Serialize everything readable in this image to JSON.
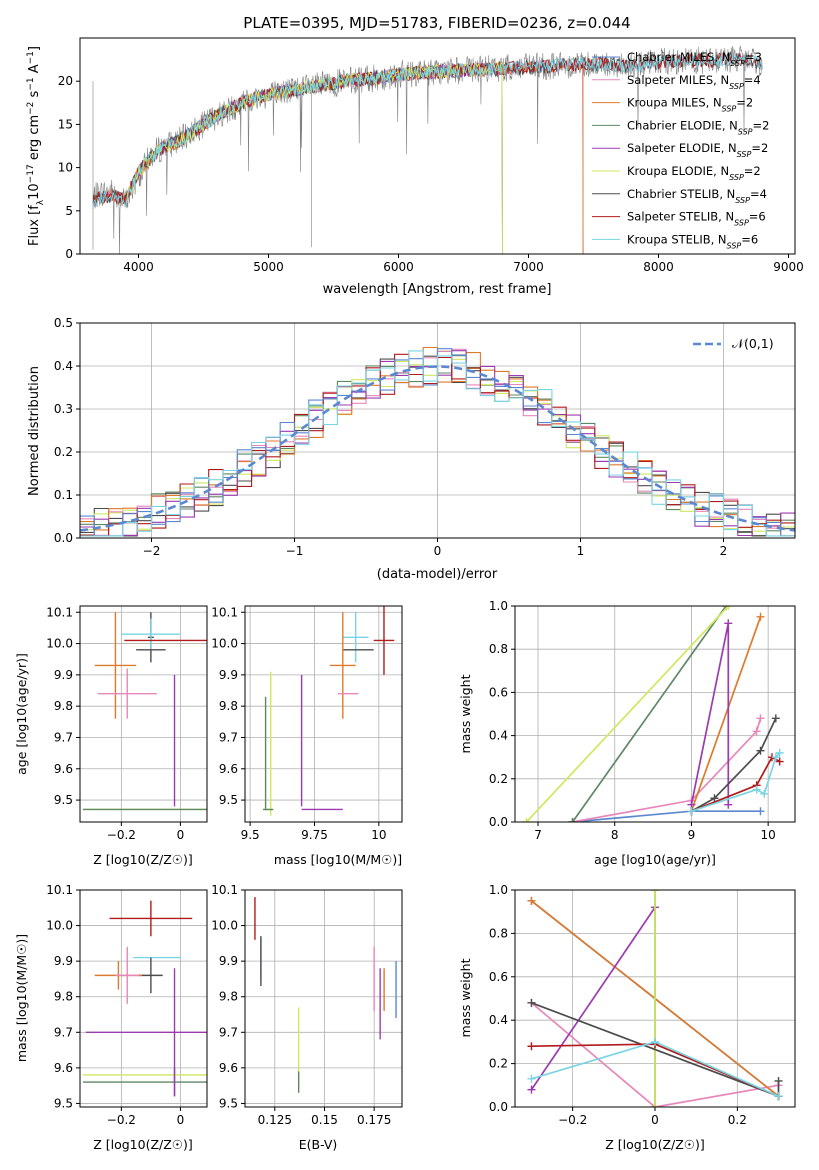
{
  "title": "PLATE=0395, MJD=51783, FIBERID=0236, z=0.044",
  "legend_colors": [
    "#5b88d0",
    "#e787bb",
    "#de7a2b",
    "#5e8764",
    "#9c3bb0",
    "#cfe85e",
    "#4c4c4c",
    "#b11b1b",
    "#79d4e3"
  ],
  "models": [
    {
      "name": "Chabrier MILES",
      "nssp": "3"
    },
    {
      "name": "Salpeter MILES",
      "nssp": "4"
    },
    {
      "name": "Kroupa MILES",
      "nssp": "2"
    },
    {
      "name": "Chabrier ELODIE",
      "nssp": "2"
    },
    {
      "name": "Salpeter ELODIE",
      "nssp": "2"
    },
    {
      "name": "Kroupa ELODIE",
      "nssp": "2"
    },
    {
      "name": "Chabrier STELIB",
      "nssp": "4"
    },
    {
      "name": "Salpeter STELIB",
      "nssp": "6"
    },
    {
      "name": "Kroupa STELIB",
      "nssp": "6"
    }
  ],
  "chart_data": [
    {
      "type": "line",
      "id": "spectrum",
      "xlabel": "wavelength [Angstrom, rest frame]",
      "ylabel": "Flux [f_λ 10^-17 erg cm^-2 s^-1 A^-1]",
      "xlim": [
        3550,
        9050
      ],
      "ylim": [
        0,
        25
      ],
      "xticks": [
        4000,
        5000,
        6000,
        7000,
        8000,
        9000
      ],
      "yticks": [
        0,
        5,
        10,
        15,
        20
      ],
      "data_continuum": {
        "x": [
          3650,
          3700,
          3800,
          3900,
          4000,
          4100,
          4200,
          4300,
          4400,
          4500,
          4600,
          4800,
          5000,
          5200,
          5400,
          5600,
          5800,
          6000,
          6200,
          6400,
          6600,
          6800,
          7000,
          7200,
          7400,
          7600,
          7800,
          8000,
          8200,
          8400,
          8600,
          8800
        ],
        "y": [
          6.5,
          7.0,
          7.2,
          6.0,
          9.0,
          11.5,
          12.5,
          13.0,
          14.0,
          15.0,
          16.0,
          17.5,
          18.5,
          19.0,
          19.5,
          20.0,
          20.3,
          20.8,
          21.0,
          21.2,
          21.3,
          21.5,
          21.6,
          21.8,
          22.0,
          22.0,
          21.8,
          22.2,
          22.4,
          22.4,
          22.6,
          22.0
        ]
      },
      "model_continuum": {
        "x": [
          3650,
          3700,
          3800,
          3900,
          4000,
          4100,
          4200,
          4300,
          4400,
          4500,
          4600,
          4800,
          5000,
          5200,
          5400,
          5600,
          5800,
          6000,
          6200,
          6400,
          6600,
          6800,
          7000,
          7200,
          7400,
          7600,
          7800,
          8000,
          8200,
          8400,
          8600,
          8800
        ],
        "y": [
          6.0,
          6.5,
          6.8,
          6.2,
          9.5,
          11.2,
          12.5,
          13.0,
          14.0,
          15.0,
          16.0,
          17.5,
          18.5,
          19.0,
          19.5,
          20.0,
          20.3,
          20.8,
          21.0,
          21.2,
          21.3,
          21.5,
          21.6,
          21.8,
          22.0,
          22.0,
          21.8,
          22.2,
          22.4,
          22.4,
          22.6,
          22.0
        ]
      },
      "model_ranges": [
        [
          3650,
          7420
        ],
        [
          3650,
          7420
        ],
        [
          3650,
          7420
        ],
        [
          3900,
          6800
        ],
        [
          3900,
          6800
        ],
        [
          3900,
          6800
        ],
        [
          3650,
          8800
        ],
        [
          3650,
          8800
        ],
        [
          3650,
          8800
        ]
      ]
    },
    {
      "type": "bar",
      "id": "residuals",
      "xlabel": "(data-model)/error",
      "ylabel": "Normed distribution",
      "xlim": [
        -2.5,
        2.5
      ],
      "ylim": [
        0,
        0.5
      ],
      "xticks": [
        -2,
        -1,
        0,
        1,
        2
      ],
      "yticks": [
        0.0,
        0.1,
        0.2,
        0.3,
        0.4,
        0.5
      ],
      "bin_width": 0.1,
      "gaussian_label": "𝒩(0,1)",
      "gaussian": {
        "mu": 0,
        "sigma": 1
      }
    },
    {
      "type": "scatter",
      "id": "z-age",
      "xlabel": "Z [log10(Z/Z☉)]",
      "ylabel": "age  [log10(age/yr)]",
      "xlim": [
        -0.34,
        0.09
      ],
      "ylim": [
        9.43,
        10.12
      ],
      "xticks": [
        -0.2,
        0.0
      ],
      "yticks": [
        9.5,
        9.6,
        9.7,
        9.8,
        9.9,
        10.0,
        10.1
      ],
      "points": [
        {
          "c": 6,
          "x": -0.1,
          "y": 10.02,
          "xerr": 0.01,
          "yerr": 0.08
        },
        {
          "c": 8,
          "x": -0.1,
          "y": 10.03,
          "xerr": 0.1,
          "yerr": 0.05
        },
        {
          "c": 7,
          "x": -0.05,
          "y": 10.01,
          "xerr": 0.14,
          "yerr": 0.0
        },
        {
          "c": 6,
          "x": -0.1,
          "y": 9.98,
          "xerr": 0.05,
          "yerr": 0.0
        },
        {
          "c": 2,
          "x": -0.22,
          "y": 9.93,
          "xerr": 0.07,
          "yerr": 0.17
        },
        {
          "c": 1,
          "x": -0.18,
          "y": 9.84,
          "xerr": 0.1,
          "yerr": 0.08
        },
        {
          "c": 4,
          "x": -0.02,
          "y": 9.69,
          "xerr": 0.0,
          "yerr": 0.21
        },
        {
          "c": 5,
          "x": -0.02,
          "y": 9.47,
          "xerr": 0.31,
          "yerr": 0.0
        },
        {
          "c": 3,
          "x": -0.02,
          "y": 9.47,
          "xerr": 0.31,
          "yerr": 0.0
        },
        {
          "c": 4,
          "x": -0.02,
          "y": 9.47,
          "xerr": 0.0,
          "yerr": 0.0
        }
      ]
    },
    {
      "type": "scatter",
      "id": "mass-age",
      "xlabel": "mass [log10(M/M☉)]",
      "ylabel": "",
      "xlim": [
        9.48,
        10.09
      ],
      "ylim": [
        9.43,
        10.12
      ],
      "xticks": [
        9.5,
        9.75,
        10.0
      ],
      "yticks": [
        9.5,
        9.6,
        9.7,
        9.8,
        9.9,
        10.0,
        10.1
      ],
      "points": [
        {
          "c": 7,
          "x": 10.02,
          "y": 10.01,
          "xerr": 0.04,
          "yerr": 0.11
        },
        {
          "c": 8,
          "x": 9.91,
          "y": 10.02,
          "xerr": 0.05,
          "yerr": 0.08
        },
        {
          "c": 6,
          "x": 9.92,
          "y": 9.98,
          "xerr": 0.06,
          "yerr": 0.0
        },
        {
          "c": 2,
          "x": 9.86,
          "y": 9.93,
          "xerr": 0.05,
          "yerr": 0.17
        },
        {
          "c": 1,
          "x": 9.88,
          "y": 9.84,
          "xerr": 0.04,
          "yerr": 0.0
        },
        {
          "c": 5,
          "x": 9.58,
          "y": 9.68,
          "xerr": 0.0,
          "yerr": 0.23
        },
        {
          "c": 3,
          "x": 9.56,
          "y": 9.65,
          "xerr": 0.0,
          "yerr": 0.18
        },
        {
          "c": 4,
          "x": 9.7,
          "y": 9.69,
          "xerr": 0.0,
          "yerr": 0.21
        },
        {
          "c": 4,
          "x": 9.78,
          "y": 9.47,
          "xerr": 0.08,
          "yerr": 0.0
        },
        {
          "c": 5,
          "x": 9.57,
          "y": 9.47,
          "xerr": 0.02,
          "yerr": 0.0
        },
        {
          "c": 3,
          "x": 9.57,
          "y": 9.47,
          "xerr": 0.02,
          "yerr": 0.0
        }
      ]
    },
    {
      "type": "line",
      "id": "age-weight",
      "xlabel": "age  [log10(age/yr)]",
      "ylabel": "mass weight",
      "xlim": [
        6.7,
        10.35
      ],
      "ylim": [
        0,
        1
      ],
      "xticks": [
        7,
        8,
        9,
        10
      ],
      "yticks": [
        0.0,
        0.2,
        0.4,
        0.6,
        0.8,
        1.0
      ],
      "series": [
        {
          "c": 0,
          "x": [
            7.45,
            9.0,
            9.9
          ],
          "y": [
            0.0,
            0.05,
            0.05
          ]
        },
        {
          "c": 1,
          "x": [
            7.45,
            9.0,
            9.85,
            9.9
          ],
          "y": [
            0.0,
            0.1,
            0.42,
            0.48
          ]
        },
        {
          "c": 2,
          "x": [
            9.0,
            9.9
          ],
          "y": [
            0.05,
            0.95
          ]
        },
        {
          "c": 3,
          "x": [
            7.45,
            9.45
          ],
          "y": [
            0.0,
            1.0
          ]
        },
        {
          "c": 4,
          "x": [
            9.0,
            9.48,
            9.48
          ],
          "y": [
            0.08,
            0.92,
            0.08
          ]
        },
        {
          "c": 5,
          "x": [
            6.85,
            9.48
          ],
          "y": [
            0.0,
            1.0
          ]
        },
        {
          "c": 6,
          "x": [
            9.0,
            9.3,
            9.9,
            10.1
          ],
          "y": [
            0.05,
            0.11,
            0.33,
            0.48
          ]
        },
        {
          "c": 7,
          "x": [
            9.0,
            9.85,
            10.05,
            10.15
          ],
          "y": [
            0.05,
            0.17,
            0.3,
            0.28
          ]
        },
        {
          "c": 8,
          "x": [
            9.0,
            9.85,
            9.95,
            10.1,
            10.15
          ],
          "y": [
            0.05,
            0.15,
            0.13,
            0.3,
            0.32
          ]
        }
      ]
    },
    {
      "type": "scatter",
      "id": "z-mass",
      "xlabel": "Z [log10(Z/Z☉)]",
      "ylabel": "mass [log10(M/M☉)]",
      "xlim": [
        -0.34,
        0.09
      ],
      "ylim": [
        9.49,
        10.1
      ],
      "xticks": [
        -0.2,
        0.0
      ],
      "yticks": [
        9.5,
        9.6,
        9.7,
        9.8,
        9.9,
        10.0,
        10.1
      ],
      "points": [
        {
          "c": 7,
          "x": -0.1,
          "y": 10.02,
          "xerr": 0.14,
          "yerr": 0.05
        },
        {
          "c": 8,
          "x": -0.08,
          "y": 9.91,
          "xerr": 0.08,
          "yerr": 0.0
        },
        {
          "c": 6,
          "x": -0.1,
          "y": 9.86,
          "xerr": 0.04,
          "yerr": 0.05
        },
        {
          "c": 2,
          "x": -0.21,
          "y": 9.86,
          "xerr": 0.08,
          "yerr": 0.04
        },
        {
          "c": 1,
          "x": -0.18,
          "y": 9.86,
          "xerr": 0.04,
          "yerr": 0.08
        },
        {
          "c": 4,
          "x": -0.02,
          "y": 9.7,
          "xerr": 0.3,
          "yerr": 0.18
        },
        {
          "c": 5,
          "x": -0.02,
          "y": 9.58,
          "xerr": 0.31,
          "yerr": 0.0
        },
        {
          "c": 3,
          "x": -0.02,
          "y": 9.56,
          "xerr": 0.31,
          "yerr": 0.0
        },
        {
          "c": 4,
          "x": -0.02,
          "y": 9.56,
          "xerr": 0.0,
          "yerr": 0.04
        }
      ]
    },
    {
      "type": "scatter",
      "id": "ebv-mass",
      "xlabel": "E(B-V)",
      "ylabel": "",
      "xlim": [
        0.11,
        0.189
      ],
      "ylim": [
        9.49,
        10.1
      ],
      "xticks": [
        0.125,
        0.15,
        0.175
      ],
      "yticks": [
        9.5,
        9.6,
        9.7,
        9.8,
        9.9,
        10.0,
        10.1
      ],
      "points": [
        {
          "c": 7,
          "x": 0.115,
          "y": 10.02,
          "xerr": 0.0,
          "yerr": 0.06
        },
        {
          "c": 8,
          "x": 0.118,
          "y": 9.91,
          "xerr": 0.0,
          "yerr": 0.06
        },
        {
          "c": 6,
          "x": 0.118,
          "y": 9.9,
          "xerr": 0.0,
          "yerr": 0.07
        },
        {
          "c": 5,
          "x": 0.137,
          "y": 9.66,
          "xerr": 0.0,
          "yerr": 0.11
        },
        {
          "c": 3,
          "x": 0.137,
          "y": 9.56,
          "xerr": 0.0,
          "yerr": 0.03
        },
        {
          "c": 1,
          "x": 0.175,
          "y": 9.85,
          "xerr": 0.0,
          "yerr": 0.09
        },
        {
          "c": 4,
          "x": 0.178,
          "y": 9.78,
          "xerr": 0.0,
          "yerr": 0.1
        },
        {
          "c": 2,
          "x": 0.18,
          "y": 9.82,
          "xerr": 0.0,
          "yerr": 0.06
        },
        {
          "c": 0,
          "x": 0.186,
          "y": 9.82,
          "xerr": 0.0,
          "yerr": 0.08
        }
      ]
    },
    {
      "type": "line",
      "id": "z-weight",
      "xlabel": "Z [log10(Z/Z☉)]",
      "ylabel": "mass weight",
      "xlim": [
        -0.34,
        0.34
      ],
      "ylim": [
        0,
        1
      ],
      "xticks": [
        -0.2,
        0.0,
        0.2
      ],
      "yticks": [
        0.0,
        0.2,
        0.4,
        0.6,
        0.8,
        1.0
      ],
      "series": [
        {
          "c": 0,
          "x": [
            -0.3,
            0.3
          ],
          "y": [
            0.95,
            0.05
          ]
        },
        {
          "c": 1,
          "x": [
            -0.3,
            0.0,
            0.3
          ],
          "y": [
            0.48,
            0.0,
            0.1
          ]
        },
        {
          "c": 2,
          "x": [
            -0.3,
            0.3
          ],
          "y": [
            0.95,
            0.05
          ]
        },
        {
          "c": 3,
          "x": [
            0.0,
            0.0
          ],
          "y": [
            0.0,
            1.0
          ]
        },
        {
          "c": 4,
          "x": [
            -0.3,
            0.0
          ],
          "y": [
            0.08,
            0.92
          ]
        },
        {
          "c": 5,
          "x": [
            0.0,
            0.0
          ],
          "y": [
            0.0,
            1.0
          ]
        },
        {
          "c": 6,
          "x": [
            -0.3,
            0.3,
            0.3
          ],
          "y": [
            0.48,
            0.05,
            0.12
          ]
        },
        {
          "c": 7,
          "x": [
            -0.3,
            0.0,
            0.3
          ],
          "y": [
            0.28,
            0.29,
            0.05
          ]
        },
        {
          "c": 8,
          "x": [
            -0.3,
            0.0,
            0.3
          ],
          "y": [
            0.13,
            0.3,
            0.05
          ]
        }
      ]
    }
  ]
}
